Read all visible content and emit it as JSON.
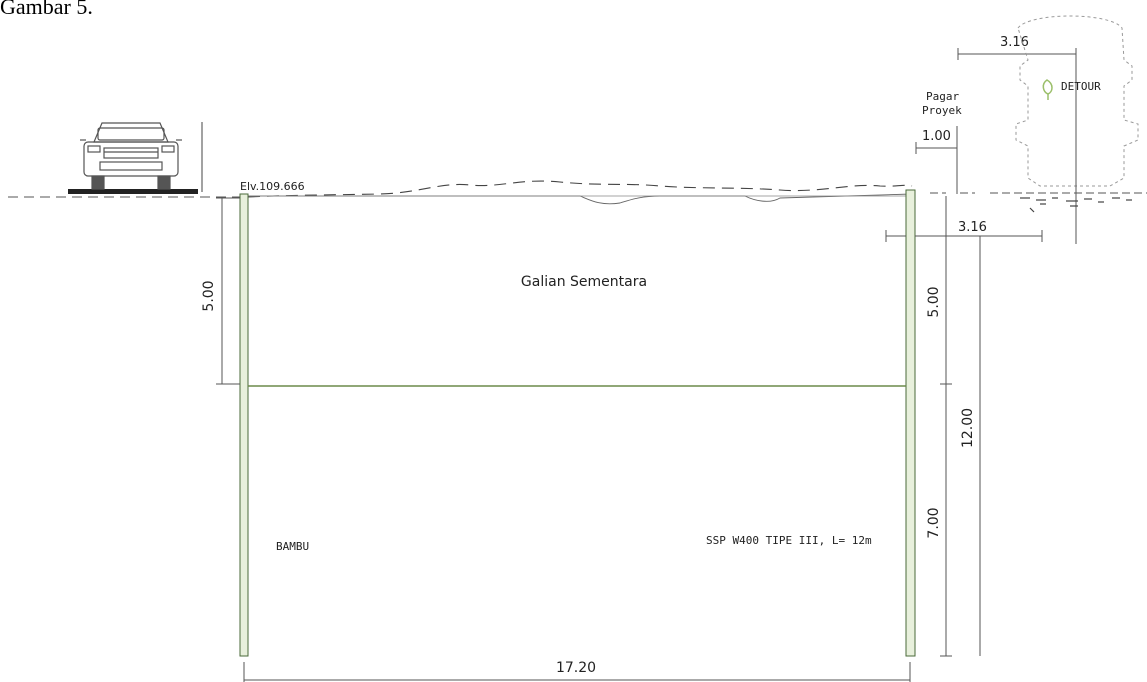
{
  "caption": "Gambar 5.",
  "elevation_label": "Elv.109.666",
  "excavation_label": "Galian Sementara",
  "left_wall_label": "BAMBU",
  "right_wall_label": "SSP W400 TIPE III, L= 12m",
  "fence_label_line1": "Pagar",
  "fence_label_line2": "Proyek",
  "detour_label": "DETOUR",
  "dimensions": {
    "left_depth": "5.00",
    "right_upper_depth": "5.00",
    "right_lower_depth": "7.00",
    "total_depth": "12.00",
    "width": "17.20",
    "fence_offset": "1.00",
    "detour_offset": "3.16",
    "detour_width": "3.16"
  },
  "colors": {
    "line": "#333333",
    "sheet_pile_fill": "#e8f0dc",
    "sheet_pile_edge": "#4a6a3a",
    "strut": "#6b8a4a",
    "vehicle": "#555555",
    "ghost_vehicle": "#9a9a9a"
  }
}
